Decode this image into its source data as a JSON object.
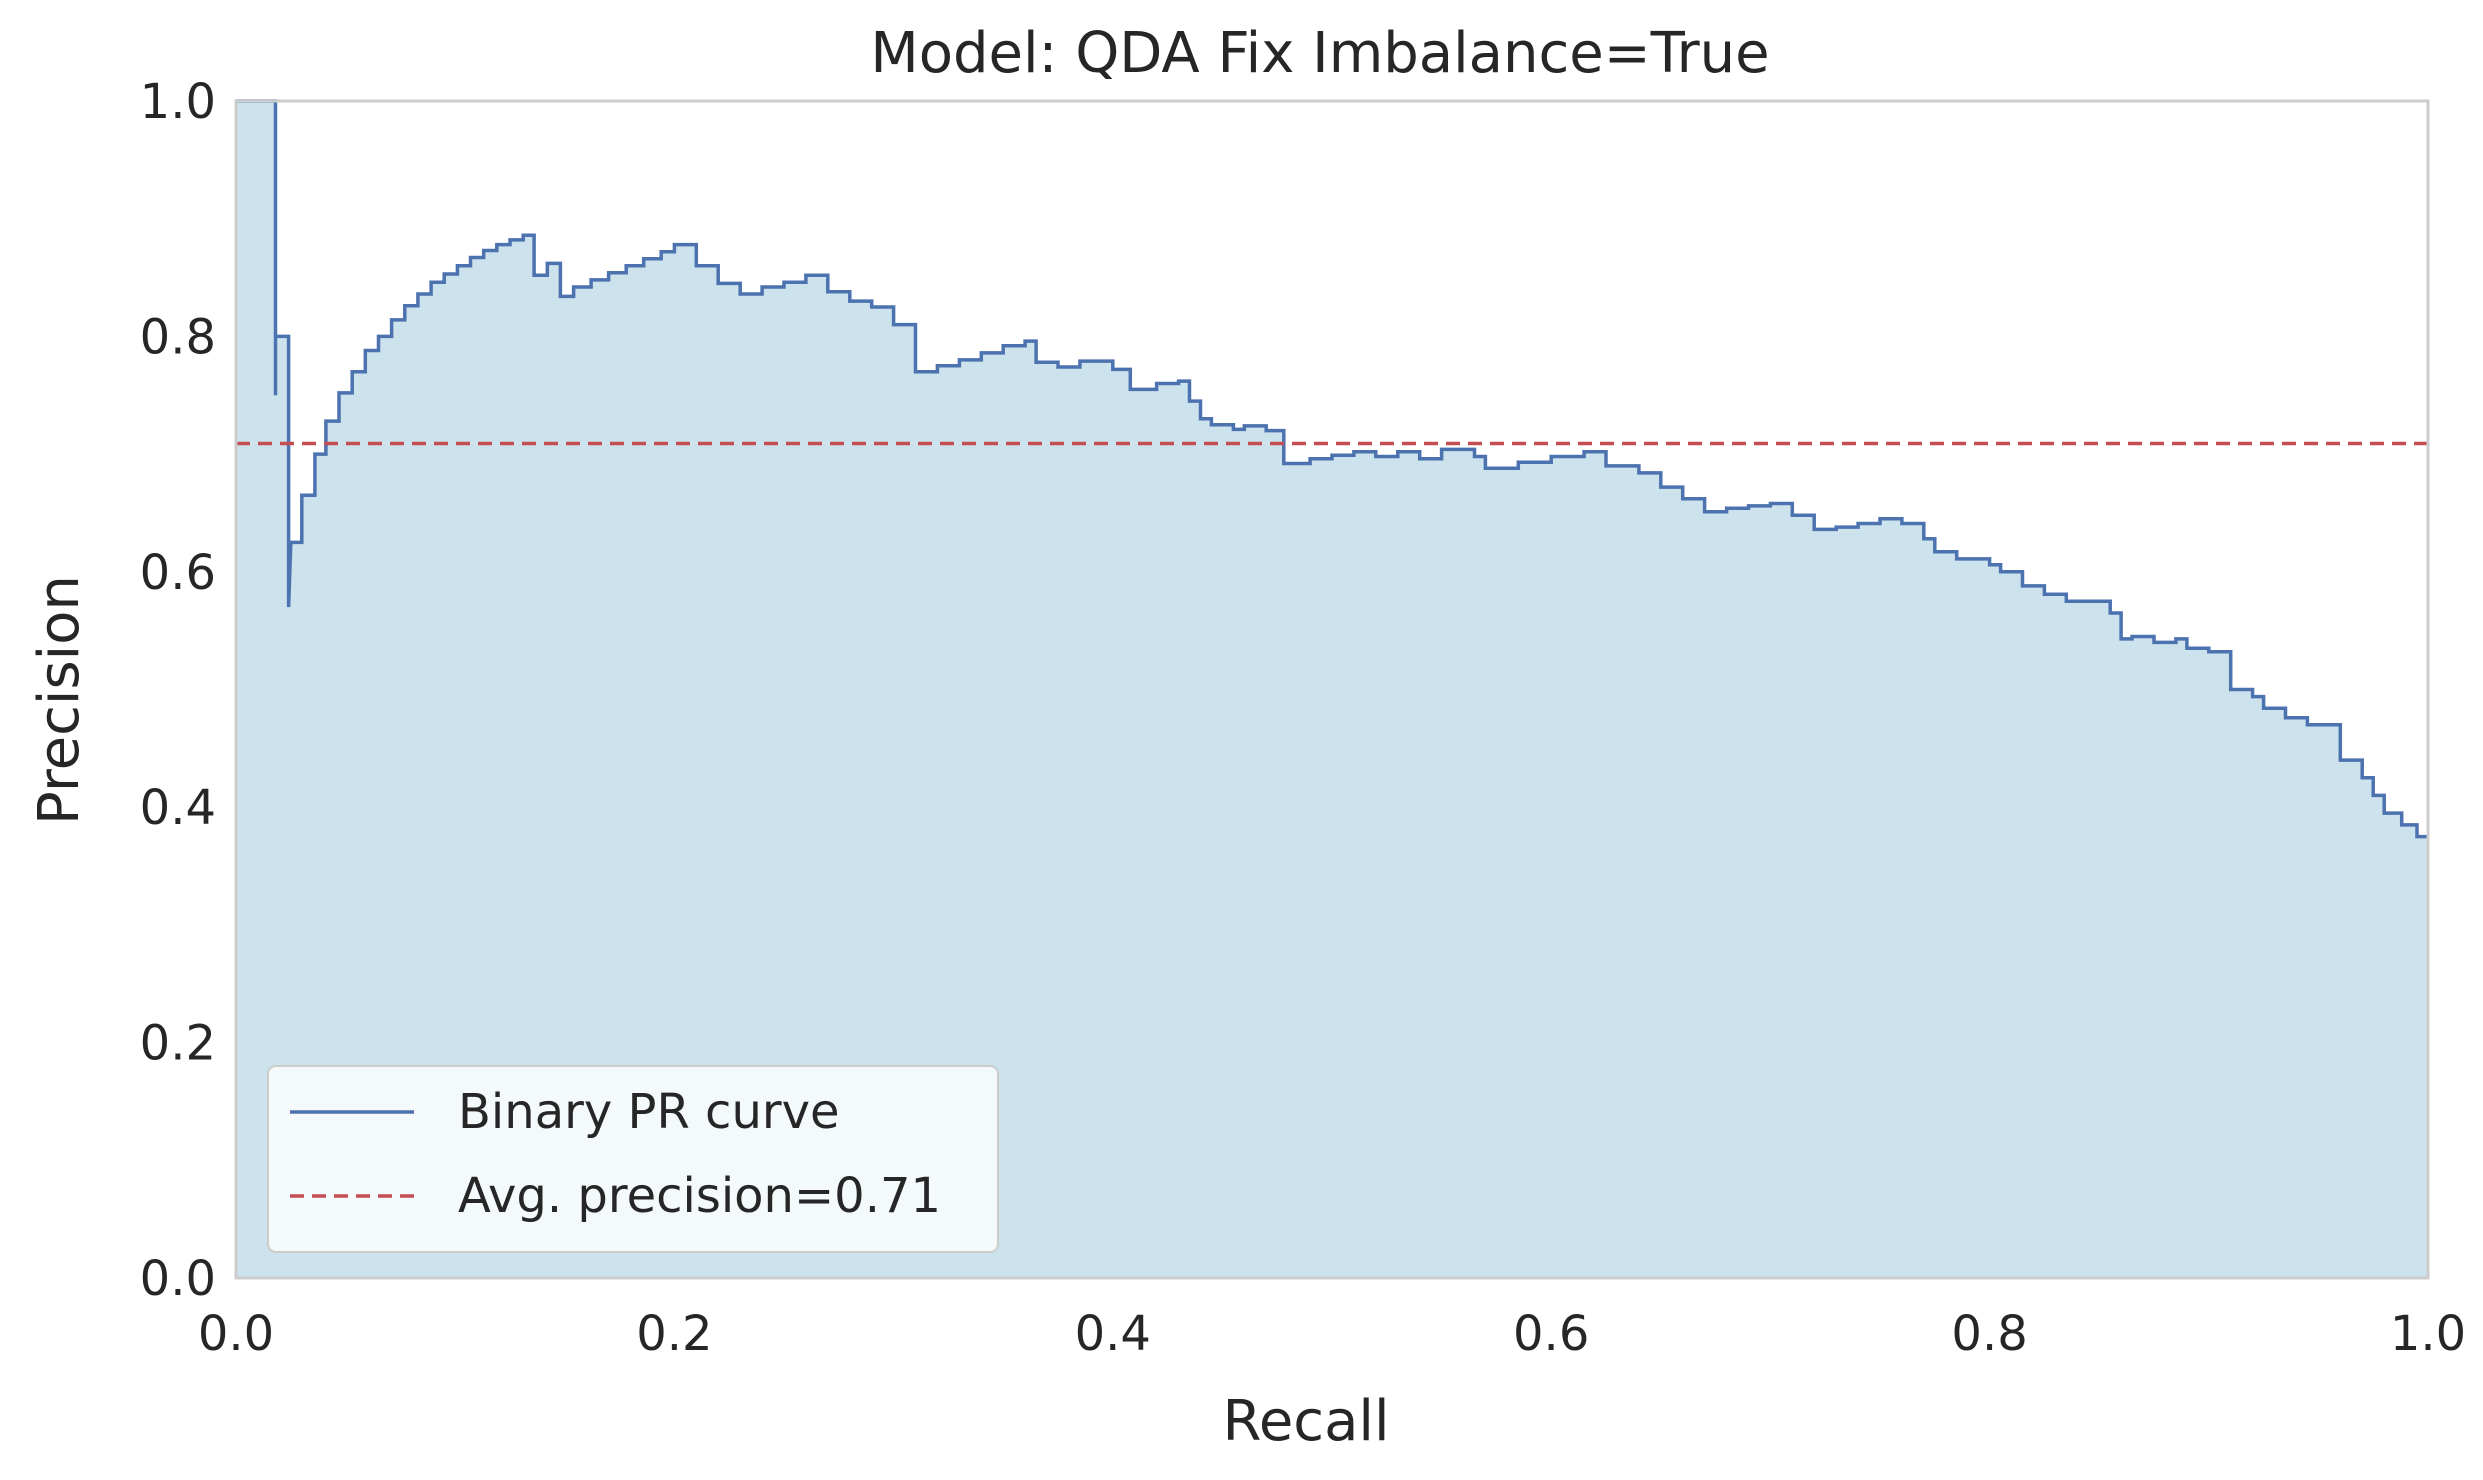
{
  "chart_data": {
    "type": "line",
    "subtype": "step-area",
    "title": "Model: QDA     Fix Imbalance=True",
    "xlabel": "Recall",
    "ylabel": "Precision",
    "xlim": [
      0.0,
      1.0
    ],
    "ylim": [
      0.0,
      1.0
    ],
    "xticks": [
      "0.0",
      "0.2",
      "0.4",
      "0.6",
      "0.8",
      "1.0"
    ],
    "yticks": [
      "0.0",
      "0.2",
      "0.4",
      "0.6",
      "0.8",
      "1.0"
    ],
    "grid": false,
    "legend_position": "lower-left",
    "series": [
      {
        "name": "Binary PR curve",
        "style": "step",
        "color": "#4c72b0",
        "fill": "#c6dfea",
        "points": [
          [
            0.0,
            1.0
          ],
          [
            0.018,
            1.0
          ],
          [
            0.018,
            0.75
          ],
          [
            0.018,
            0.8
          ],
          [
            0.024,
            0.8
          ],
          [
            0.024,
            0.57
          ],
          [
            0.025,
            0.625
          ],
          [
            0.03,
            0.625
          ],
          [
            0.03,
            0.665
          ],
          [
            0.036,
            0.665
          ],
          [
            0.036,
            0.7
          ],
          [
            0.041,
            0.7
          ],
          [
            0.041,
            0.728
          ],
          [
            0.047,
            0.728
          ],
          [
            0.047,
            0.752
          ],
          [
            0.053,
            0.752
          ],
          [
            0.053,
            0.77
          ],
          [
            0.059,
            0.77
          ],
          [
            0.059,
            0.788
          ],
          [
            0.065,
            0.788
          ],
          [
            0.065,
            0.8
          ],
          [
            0.071,
            0.8
          ],
          [
            0.071,
            0.814
          ],
          [
            0.077,
            0.814
          ],
          [
            0.077,
            0.826
          ],
          [
            0.083,
            0.826
          ],
          [
            0.083,
            0.836
          ],
          [
            0.089,
            0.836
          ],
          [
            0.089,
            0.846
          ],
          [
            0.095,
            0.846
          ],
          [
            0.095,
            0.853
          ],
          [
            0.101,
            0.853
          ],
          [
            0.101,
            0.86
          ],
          [
            0.107,
            0.86
          ],
          [
            0.107,
            0.867
          ],
          [
            0.113,
            0.867
          ],
          [
            0.113,
            0.873
          ],
          [
            0.119,
            0.873
          ],
          [
            0.119,
            0.878
          ],
          [
            0.125,
            0.878
          ],
          [
            0.125,
            0.882
          ],
          [
            0.131,
            0.882
          ],
          [
            0.131,
            0.886
          ],
          [
            0.136,
            0.886
          ],
          [
            0.136,
            0.852
          ],
          [
            0.142,
            0.852
          ],
          [
            0.142,
            0.862
          ],
          [
            0.148,
            0.862
          ],
          [
            0.148,
            0.834
          ],
          [
            0.154,
            0.834
          ],
          [
            0.154,
            0.842
          ],
          [
            0.162,
            0.842
          ],
          [
            0.162,
            0.848
          ],
          [
            0.17,
            0.848
          ],
          [
            0.17,
            0.854
          ],
          [
            0.178,
            0.854
          ],
          [
            0.178,
            0.86
          ],
          [
            0.186,
            0.86
          ],
          [
            0.186,
            0.866
          ],
          [
            0.194,
            0.866
          ],
          [
            0.194,
            0.872
          ],
          [
            0.2,
            0.872
          ],
          [
            0.2,
            0.878
          ],
          [
            0.21,
            0.878
          ],
          [
            0.21,
            0.86
          ],
          [
            0.22,
            0.86
          ],
          [
            0.22,
            0.845
          ],
          [
            0.23,
            0.845
          ],
          [
            0.23,
            0.836
          ],
          [
            0.24,
            0.836
          ],
          [
            0.24,
            0.842
          ],
          [
            0.25,
            0.842
          ],
          [
            0.25,
            0.846
          ],
          [
            0.26,
            0.846
          ],
          [
            0.26,
            0.852
          ],
          [
            0.27,
            0.852
          ],
          [
            0.27,
            0.838
          ],
          [
            0.28,
            0.838
          ],
          [
            0.28,
            0.83
          ],
          [
            0.29,
            0.83
          ],
          [
            0.29,
            0.825
          ],
          [
            0.3,
            0.825
          ],
          [
            0.3,
            0.81
          ],
          [
            0.31,
            0.81
          ],
          [
            0.31,
            0.77
          ],
          [
            0.32,
            0.77
          ],
          [
            0.32,
            0.775
          ],
          [
            0.33,
            0.775
          ],
          [
            0.33,
            0.78
          ],
          [
            0.34,
            0.78
          ],
          [
            0.34,
            0.786
          ],
          [
            0.35,
            0.786
          ],
          [
            0.35,
            0.792
          ],
          [
            0.36,
            0.792
          ],
          [
            0.36,
            0.796
          ],
          [
            0.365,
            0.796
          ],
          [
            0.365,
            0.778
          ],
          [
            0.375,
            0.778
          ],
          [
            0.375,
            0.774
          ],
          [
            0.385,
            0.774
          ],
          [
            0.385,
            0.779
          ],
          [
            0.4,
            0.779
          ],
          [
            0.4,
            0.772
          ],
          [
            0.408,
            0.772
          ],
          [
            0.408,
            0.755
          ],
          [
            0.42,
            0.755
          ],
          [
            0.42,
            0.76
          ],
          [
            0.43,
            0.76
          ],
          [
            0.43,
            0.762
          ],
          [
            0.435,
            0.762
          ],
          [
            0.435,
            0.745
          ],
          [
            0.44,
            0.745
          ],
          [
            0.44,
            0.73
          ],
          [
            0.445,
            0.73
          ],
          [
            0.445,
            0.725
          ],
          [
            0.455,
            0.725
          ],
          [
            0.455,
            0.721
          ],
          [
            0.46,
            0.721
          ],
          [
            0.46,
            0.724
          ],
          [
            0.47,
            0.724
          ],
          [
            0.47,
            0.72
          ],
          [
            0.478,
            0.72
          ],
          [
            0.478,
            0.692
          ],
          [
            0.49,
            0.692
          ],
          [
            0.49,
            0.696
          ],
          [
            0.5,
            0.696
          ],
          [
            0.5,
            0.699
          ],
          [
            0.51,
            0.699
          ],
          [
            0.51,
            0.702
          ],
          [
            0.52,
            0.702
          ],
          [
            0.52,
            0.698
          ],
          [
            0.53,
            0.698
          ],
          [
            0.53,
            0.702
          ],
          [
            0.54,
            0.702
          ],
          [
            0.54,
            0.696
          ],
          [
            0.55,
            0.696
          ],
          [
            0.55,
            0.704
          ],
          [
            0.565,
            0.704
          ],
          [
            0.565,
            0.698
          ],
          [
            0.57,
            0.698
          ],
          [
            0.57,
            0.688
          ],
          [
            0.585,
            0.688
          ],
          [
            0.585,
            0.693
          ],
          [
            0.6,
            0.693
          ],
          [
            0.6,
            0.698
          ],
          [
            0.615,
            0.698
          ],
          [
            0.615,
            0.702
          ],
          [
            0.625,
            0.702
          ],
          [
            0.625,
            0.69
          ],
          [
            0.64,
            0.69
          ],
          [
            0.64,
            0.684
          ],
          [
            0.65,
            0.684
          ],
          [
            0.65,
            0.672
          ],
          [
            0.66,
            0.672
          ],
          [
            0.66,
            0.662
          ],
          [
            0.67,
            0.662
          ],
          [
            0.67,
            0.651
          ],
          [
            0.68,
            0.651
          ],
          [
            0.68,
            0.654
          ],
          [
            0.69,
            0.654
          ],
          [
            0.69,
            0.656
          ],
          [
            0.7,
            0.656
          ],
          [
            0.7,
            0.658
          ],
          [
            0.71,
            0.658
          ],
          [
            0.71,
            0.648
          ],
          [
            0.72,
            0.648
          ],
          [
            0.72,
            0.636
          ],
          [
            0.73,
            0.636
          ],
          [
            0.73,
            0.638
          ],
          [
            0.74,
            0.638
          ],
          [
            0.74,
            0.641
          ],
          [
            0.75,
            0.641
          ],
          [
            0.75,
            0.645
          ],
          [
            0.76,
            0.645
          ],
          [
            0.76,
            0.641
          ],
          [
            0.77,
            0.641
          ],
          [
            0.77,
            0.628
          ],
          [
            0.775,
            0.628
          ],
          [
            0.775,
            0.617
          ],
          [
            0.785,
            0.617
          ],
          [
            0.785,
            0.611
          ],
          [
            0.8,
            0.611
          ],
          [
            0.8,
            0.606
          ],
          [
            0.805,
            0.606
          ],
          [
            0.805,
            0.6
          ],
          [
            0.815,
            0.6
          ],
          [
            0.815,
            0.588
          ],
          [
            0.825,
            0.588
          ],
          [
            0.825,
            0.581
          ],
          [
            0.835,
            0.581
          ],
          [
            0.835,
            0.575
          ],
          [
            0.855,
            0.575
          ],
          [
            0.855,
            0.565
          ],
          [
            0.86,
            0.565
          ],
          [
            0.86,
            0.543
          ],
          [
            0.865,
            0.543
          ],
          [
            0.865,
            0.545
          ],
          [
            0.875,
            0.545
          ],
          [
            0.875,
            0.54
          ],
          [
            0.885,
            0.54
          ],
          [
            0.885,
            0.543
          ],
          [
            0.89,
            0.543
          ],
          [
            0.89,
            0.535
          ],
          [
            0.9,
            0.535
          ],
          [
            0.9,
            0.532
          ],
          [
            0.91,
            0.532
          ],
          [
            0.91,
            0.5
          ],
          [
            0.92,
            0.5
          ],
          [
            0.92,
            0.494
          ],
          [
            0.925,
            0.494
          ],
          [
            0.925,
            0.484
          ],
          [
            0.935,
            0.484
          ],
          [
            0.935,
            0.476
          ],
          [
            0.945,
            0.476
          ],
          [
            0.945,
            0.47
          ],
          [
            0.96,
            0.47
          ],
          [
            0.96,
            0.44
          ],
          [
            0.97,
            0.44
          ],
          [
            0.97,
            0.425
          ],
          [
            0.975,
            0.425
          ],
          [
            0.975,
            0.41
          ],
          [
            0.98,
            0.41
          ],
          [
            0.98,
            0.395
          ],
          [
            0.988,
            0.395
          ],
          [
            0.988,
            0.385
          ],
          [
            0.995,
            0.385
          ],
          [
            0.995,
            0.375
          ],
          [
            1.0,
            0.375
          ]
        ]
      },
      {
        "name": "Avg. precision=0.71",
        "style": "dashed",
        "color": "#c44e52",
        "y": 0.709
      }
    ]
  }
}
